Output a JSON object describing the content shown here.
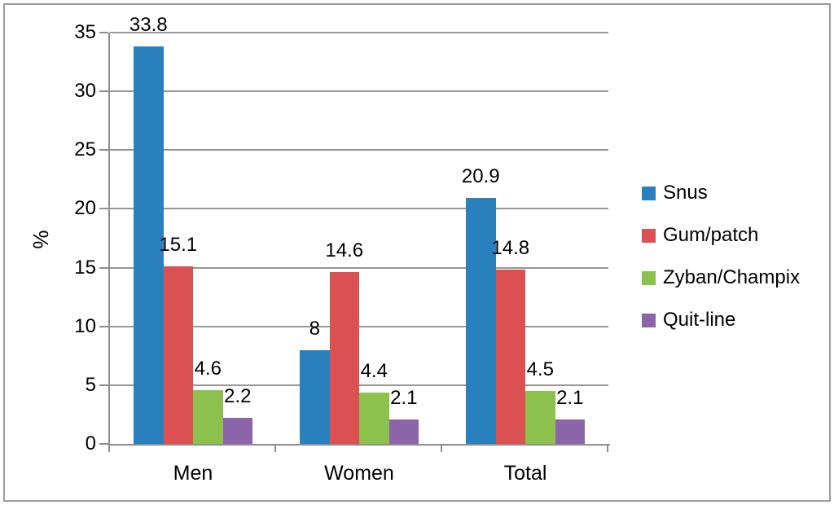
{
  "chart_data": {
    "type": "bar",
    "title": "",
    "categories": [
      "Men",
      "Women",
      "Total"
    ],
    "series": [
      {
        "name": "Snus",
        "color": "#2980BD",
        "values": [
          33.8,
          8,
          20.9
        ]
      },
      {
        "name": "Gum/patch",
        "color": "#DB5151",
        "values": [
          15.1,
          14.6,
          14.8
        ]
      },
      {
        "name": "Zyban/Champix",
        "color": "#8CC14E",
        "values": [
          4.6,
          4.4,
          4.5
        ]
      },
      {
        "name": "Quit-line",
        "color": "#8B64A9",
        "values": [
          2.2,
          2.1,
          2.1
        ]
      }
    ],
    "data_labels": [
      [
        "33.8",
        "8",
        "20.9"
      ],
      [
        "15.1",
        "14.6",
        "14.8"
      ],
      [
        "4.6",
        "4.4",
        "4.5"
      ],
      [
        "2.2",
        "2.1",
        "2.1"
      ]
    ],
    "xlabel": "",
    "ylabel": "%",
    "ylim": [
      0,
      35
    ],
    "ytick_step": 5,
    "ytick_labels": [
      "0",
      "5",
      "10",
      "15",
      "20",
      "25",
      "30",
      "35"
    ],
    "grid": true,
    "legend_position": "right",
    "colors": {
      "grid": "#969696",
      "axis": "#8E8E8E",
      "text": "#000000",
      "frame_border": "#9D9D9D",
      "background": "#FFFFFF"
    }
  }
}
